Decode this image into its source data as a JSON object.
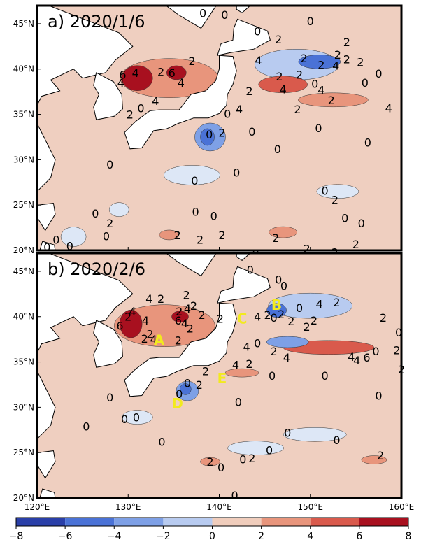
{
  "chart_data": [
    {
      "type": "heatmap",
      "panel_title": "a) 2020/1/6",
      "xlim": [
        120,
        160
      ],
      "ylim": [
        20,
        47
      ],
      "xticks": [
        120,
        130,
        140,
        150,
        160
      ],
      "yticks": [
        20,
        25,
        30,
        35,
        40,
        45
      ],
      "ytick_labels": [
        "20°N",
        "25°N",
        "30°N",
        "35°N",
        "40°N",
        "45°N"
      ],
      "contour_labels": [
        {
          "text": "0",
          "lon": 138.2,
          "lat": 46.2
        },
        {
          "text": "0",
          "lon": 140.6,
          "lat": 46.0
        },
        {
          "text": "0",
          "lon": 150.0,
          "lat": 45.3
        },
        {
          "text": "0",
          "lon": 144.2,
          "lat": 44.2
        },
        {
          "text": "2",
          "lon": 146.5,
          "lat": 43.3
        },
        {
          "text": "2",
          "lon": 154.0,
          "lat": 43.0
        },
        {
          "text": "2",
          "lon": 149.3,
          "lat": 41.2
        },
        {
          "text": "2",
          "lon": 153.0,
          "lat": 41.6
        },
        {
          "text": "4",
          "lon": 144.3,
          "lat": 41.0
        },
        {
          "text": "2",
          "lon": 151.2,
          "lat": 40.5
        },
        {
          "text": "4",
          "lon": 152.8,
          "lat": 40.4
        },
        {
          "text": "2",
          "lon": 154.0,
          "lat": 41.1
        },
        {
          "text": "2",
          "lon": 155.5,
          "lat": 40.8
        },
        {
          "text": "0",
          "lon": 157.5,
          "lat": 39.5
        },
        {
          "text": "2",
          "lon": 137.0,
          "lat": 40.9
        },
        {
          "text": "6",
          "lon": 129.4,
          "lat": 39.4
        },
        {
          "text": "4",
          "lon": 130.8,
          "lat": 39.6
        },
        {
          "text": "2",
          "lon": 133.6,
          "lat": 39.7
        },
        {
          "text": "6",
          "lon": 134.8,
          "lat": 39.6
        },
        {
          "text": "4",
          "lon": 129.2,
          "lat": 38.5
        },
        {
          "text": "4",
          "lon": 135.8,
          "lat": 38.5
        },
        {
          "text": "2",
          "lon": 146.6,
          "lat": 39.2
        },
        {
          "text": "2",
          "lon": 148.8,
          "lat": 39.4
        },
        {
          "text": "0",
          "lon": 150.5,
          "lat": 38.4
        },
        {
          "text": "4",
          "lon": 147.0,
          "lat": 37.8
        },
        {
          "text": "4",
          "lon": 151.2,
          "lat": 37.7
        },
        {
          "text": "0",
          "lon": 156.0,
          "lat": 38.5
        },
        {
          "text": "2",
          "lon": 143.3,
          "lat": 37.6
        },
        {
          "text": "2",
          "lon": 152.3,
          "lat": 36.6
        },
        {
          "text": "4",
          "lon": 133.0,
          "lat": 36.5
        },
        {
          "text": "0",
          "lon": 131.4,
          "lat": 35.7
        },
        {
          "text": "2",
          "lon": 130.2,
          "lat": 35.0
        },
        {
          "text": "4",
          "lon": 142.2,
          "lat": 35.6
        },
        {
          "text": "0",
          "lon": 140.9,
          "lat": 35.1
        },
        {
          "text": "2",
          "lon": 148.6,
          "lat": 35.6
        },
        {
          "text": "4",
          "lon": 158.6,
          "lat": 35.7
        },
        {
          "text": "0",
          "lon": 150.9,
          "lat": 33.5
        },
        {
          "text": "0",
          "lon": 143.6,
          "lat": 33.1
        },
        {
          "text": "0",
          "lon": 138.9,
          "lat": 32.8
        },
        {
          "text": "2",
          "lon": 140.3,
          "lat": 33.0
        },
        {
          "text": "0",
          "lon": 156.3,
          "lat": 31.9
        },
        {
          "text": "0",
          "lon": 146.4,
          "lat": 31.2
        },
        {
          "text": "0",
          "lon": 128.0,
          "lat": 29.5
        },
        {
          "text": "0",
          "lon": 141.9,
          "lat": 28.6
        },
        {
          "text": "0",
          "lon": 137.3,
          "lat": 27.7
        },
        {
          "text": "0",
          "lon": 151.6,
          "lat": 26.6
        },
        {
          "text": "2",
          "lon": 152.7,
          "lat": 25.6
        },
        {
          "text": "0",
          "lon": 126.4,
          "lat": 24.1
        },
        {
          "text": "0",
          "lon": 137.4,
          "lat": 24.3
        },
        {
          "text": "0",
          "lon": 139.4,
          "lat": 23.8
        },
        {
          "text": "0",
          "lon": 153.8,
          "lat": 23.6
        },
        {
          "text": "0",
          "lon": 155.6,
          "lat": 23.0
        },
        {
          "text": "2",
          "lon": 128.0,
          "lat": 23.0
        },
        {
          "text": "0",
          "lon": 127.6,
          "lat": 21.6
        },
        {
          "text": "0",
          "lon": 122.1,
          "lat": 21.2
        },
        {
          "text": "2",
          "lon": 135.4,
          "lat": 21.7
        },
        {
          "text": "2",
          "lon": 140.3,
          "lat": 21.7
        },
        {
          "text": "2",
          "lon": 137.9,
          "lat": 21.2
        },
        {
          "text": "2",
          "lon": 146.2,
          "lat": 21.4
        },
        {
          "text": "0",
          "lon": 123.6,
          "lat": 20.5
        },
        {
          "text": "0",
          "lon": 121.1,
          "lat": 20.4
        },
        {
          "text": "2",
          "lon": 155.0,
          "lat": 20.7
        },
        {
          "text": "2",
          "lon": 149.6,
          "lat": 20.2
        },
        {
          "text": "2",
          "lon": 152.7,
          "lat": 19.8
        },
        {
          "text": "0",
          "lon": 144.0,
          "lat": 19.7
        }
      ],
      "region_labels": []
    },
    {
      "type": "heatmap",
      "panel_title": "b) 2020/2/6",
      "xlim": [
        120,
        160
      ],
      "ylim": [
        20,
        47
      ],
      "xticks": [
        120,
        130,
        140,
        150,
        160
      ],
      "xtick_labels": [
        "120°E",
        "130°E",
        "140°E",
        "150°E",
        "160°E"
      ],
      "yticks": [
        20,
        25,
        30,
        35,
        40,
        45
      ],
      "ytick_labels": [
        "20°N",
        "25°N",
        "30°N",
        "35°N",
        "40°N",
        "45°N"
      ],
      "contour_labels": [
        {
          "text": "0",
          "lon": 143.4,
          "lat": 45.2
        },
        {
          "text": "0",
          "lon": 146.5,
          "lat": 44.1
        },
        {
          "text": "0",
          "lon": 147.1,
          "lat": 43.4
        },
        {
          "text": "2",
          "lon": 136.4,
          "lat": 42.4
        },
        {
          "text": "4",
          "lon": 132.3,
          "lat": 42.0
        },
        {
          "text": "2",
          "lon": 133.6,
          "lat": 42.0
        },
        {
          "text": "4",
          "lon": 130.5,
          "lat": 40.6
        },
        {
          "text": "4",
          "lon": 136.5,
          "lat": 40.9
        },
        {
          "text": "2",
          "lon": 137.2,
          "lat": 41.2
        },
        {
          "text": "2",
          "lon": 135.6,
          "lat": 40.6
        },
        {
          "text": "2",
          "lon": 130.0,
          "lat": 40.0
        },
        {
          "text": "4",
          "lon": 131.9,
          "lat": 39.6
        },
        {
          "text": "2",
          "lon": 138.1,
          "lat": 40.2
        },
        {
          "text": "2",
          "lon": 140.1,
          "lat": 39.8
        },
        {
          "text": "6",
          "lon": 135.5,
          "lat": 39.6
        },
        {
          "text": "4",
          "lon": 136.2,
          "lat": 39.3
        },
        {
          "text": "2",
          "lon": 136.8,
          "lat": 38.7
        },
        {
          "text": "2",
          "lon": 132.4,
          "lat": 38.1
        },
        {
          "text": "6",
          "lon": 129.1,
          "lat": 39.0
        },
        {
          "text": "2",
          "lon": 131.8,
          "lat": 37.6
        },
        {
          "text": "4",
          "lon": 132.8,
          "lat": 37.5
        },
        {
          "text": "2",
          "lon": 135.5,
          "lat": 37.4
        },
        {
          "text": "0",
          "lon": 146.0,
          "lat": 39.9
        },
        {
          "text": "2",
          "lon": 146.8,
          "lat": 40.3
        },
        {
          "text": "0",
          "lon": 148.8,
          "lat": 41.0
        },
        {
          "text": "4",
          "lon": 151.0,
          "lat": 41.4
        },
        {
          "text": "2",
          "lon": 152.9,
          "lat": 41.6
        },
        {
          "text": "4",
          "lon": 144.2,
          "lat": 40.0
        },
        {
          "text": "2",
          "lon": 145.3,
          "lat": 40.2
        },
        {
          "text": "2",
          "lon": 147.9,
          "lat": 39.5
        },
        {
          "text": "2",
          "lon": 150.4,
          "lat": 39.6
        },
        {
          "text": "2",
          "lon": 149.6,
          "lat": 38.9
        },
        {
          "text": "2",
          "lon": 158.0,
          "lat": 39.9
        },
        {
          "text": "0",
          "lon": 159.7,
          "lat": 38.3
        },
        {
          "text": "4",
          "lon": 143.0,
          "lat": 36.7
        },
        {
          "text": "0",
          "lon": 144.2,
          "lat": 37.1
        },
        {
          "text": "4",
          "lon": 147.4,
          "lat": 35.5
        },
        {
          "text": "4",
          "lon": 154.5,
          "lat": 35.6
        },
        {
          "text": "2",
          "lon": 146.0,
          "lat": 36.2
        },
        {
          "text": "6",
          "lon": 156.2,
          "lat": 35.5
        },
        {
          "text": "4",
          "lon": 155.1,
          "lat": 35.2
        },
        {
          "text": "0",
          "lon": 157.2,
          "lat": 36.2
        },
        {
          "text": "2",
          "lon": 159.5,
          "lat": 36.3
        },
        {
          "text": "2",
          "lon": 160.0,
          "lat": 34.2
        },
        {
          "text": "4",
          "lon": 141.8,
          "lat": 34.7
        },
        {
          "text": "2",
          "lon": 138.5,
          "lat": 34.0
        },
        {
          "text": "2",
          "lon": 143.3,
          "lat": 34.8
        },
        {
          "text": "0",
          "lon": 145.8,
          "lat": 33.5
        },
        {
          "text": "0",
          "lon": 151.6,
          "lat": 33.5
        },
        {
          "text": "0",
          "lon": 157.5,
          "lat": 31.3
        },
        {
          "text": "0",
          "lon": 136.5,
          "lat": 32.7
        },
        {
          "text": "2",
          "lon": 137.8,
          "lat": 32.5
        },
        {
          "text": "0",
          "lon": 135.6,
          "lat": 31.5
        },
        {
          "text": "0",
          "lon": 128.0,
          "lat": 31.1
        },
        {
          "text": "0",
          "lon": 142.1,
          "lat": 30.6
        },
        {
          "text": "0",
          "lon": 130.9,
          "lat": 28.9
        },
        {
          "text": "0",
          "lon": 129.6,
          "lat": 28.7
        },
        {
          "text": "0",
          "lon": 125.4,
          "lat": 27.9
        },
        {
          "text": "0",
          "lon": 147.5,
          "lat": 27.2
        },
        {
          "text": "0",
          "lon": 133.7,
          "lat": 26.2
        },
        {
          "text": "0",
          "lon": 152.9,
          "lat": 26.4
        },
        {
          "text": "2",
          "lon": 157.7,
          "lat": 24.7
        },
        {
          "text": "0",
          "lon": 145.5,
          "lat": 25.3
        },
        {
          "text": "0",
          "lon": 142.6,
          "lat": 24.3
        },
        {
          "text": "2",
          "lon": 143.6,
          "lat": 24.4
        },
        {
          "text": "2",
          "lon": 139.0,
          "lat": 24.0
        },
        {
          "text": "0",
          "lon": 140.2,
          "lat": 23.4
        },
        {
          "text": "0",
          "lon": 141.7,
          "lat": 20.3
        }
      ],
      "region_labels": [
        {
          "text": "A",
          "lon": 133.4,
          "lat": 37.4
        },
        {
          "text": "B",
          "lon": 146.3,
          "lat": 41.3
        },
        {
          "text": "C",
          "lon": 142.5,
          "lat": 39.8
        },
        {
          "text": "D",
          "lon": 135.4,
          "lat": 30.4
        },
        {
          "text": "E",
          "lon": 140.3,
          "lat": 33.2
        }
      ]
    }
  ],
  "colorbar": {
    "levels": [
      -8,
      -6,
      -4,
      -2,
      0,
      2,
      4,
      6,
      8
    ],
    "tick_labels": [
      "−8",
      "−6",
      "−4",
      "−2",
      "0",
      "2",
      "4",
      "6",
      "8"
    ],
    "colors": [
      "#2a3fa8",
      "#4a72d6",
      "#7ea0e6",
      "#b8cbf0",
      "#dde7f6",
      "#f0cdbc",
      "#e8957c",
      "#d95a4c",
      "#a8101f"
    ]
  },
  "map_colors": {
    "land": "#ffffff",
    "background_sea": "#efcfc0",
    "coast": "#000000"
  }
}
